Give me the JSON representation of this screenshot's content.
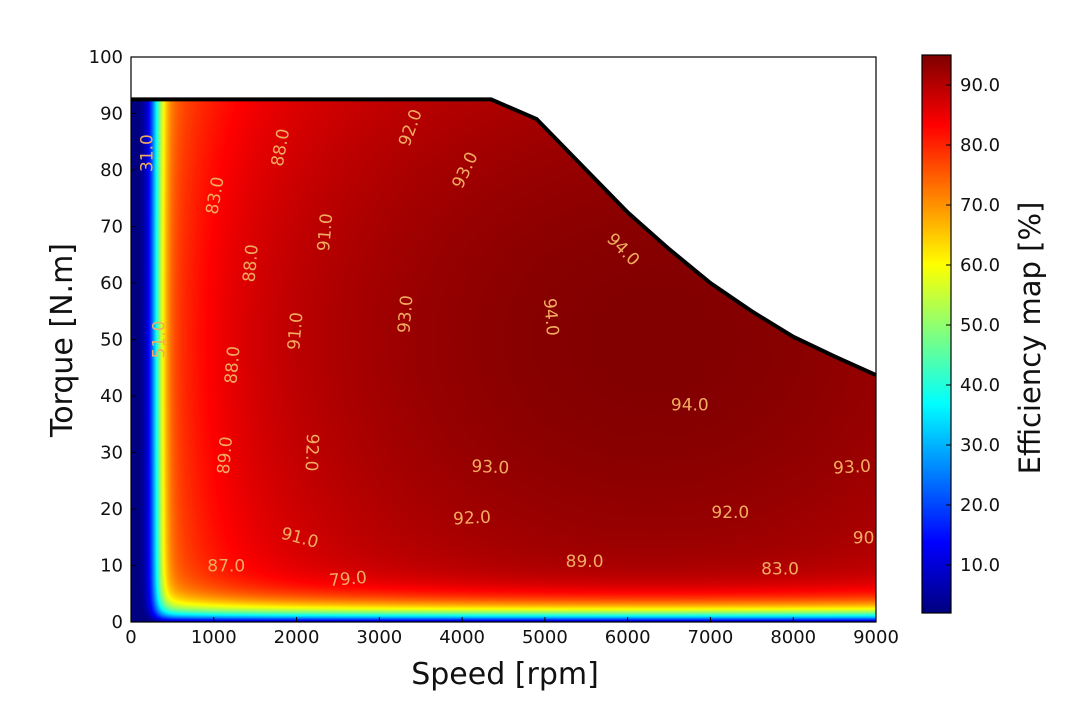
{
  "chart_data": {
    "type": "heatmap",
    "subtype": "filled-contour",
    "title": "",
    "xlabel": "Speed [rpm]",
    "ylabel": "Torque [N.m]",
    "xlim": [
      0,
      9000
    ],
    "ylim": [
      0,
      100
    ],
    "xticks": [
      0,
      1000,
      2000,
      3000,
      4000,
      5000,
      6000,
      7000,
      8000,
      9000
    ],
    "yticks": [
      0,
      10,
      20,
      30,
      40,
      50,
      60,
      70,
      80,
      90,
      100
    ],
    "colorbar": {
      "label": "Efficiency map [%]",
      "range": [
        2,
        95
      ],
      "colormap": "jet",
      "ticks": [
        "10.0",
        "20.0",
        "30.0",
        "40.0",
        "50.0",
        "60.0",
        "70.0",
        "80.0",
        "90.0"
      ]
    },
    "torque_speed_envelope": [
      [
        0,
        92.5
      ],
      [
        4350,
        92.5
      ],
      [
        4900,
        89
      ],
      [
        5500,
        80
      ],
      [
        6000,
        72.5
      ],
      [
        6500,
        66
      ],
      [
        7000,
        60
      ],
      [
        7500,
        55
      ],
      [
        8000,
        50.5
      ],
      [
        8500,
        47
      ],
      [
        9000,
        43.7
      ]
    ],
    "contour_labels": [
      {
        "text": "31.0",
        "speed": 190,
        "torque": 83,
        "angle": -90
      },
      {
        "text": "51.0",
        "speed": 330,
        "torque": 50,
        "angle": -90
      },
      {
        "text": "83.0",
        "speed": 1010,
        "torque": 75.5,
        "angle": -80
      },
      {
        "text": "88.0",
        "speed": 1800,
        "torque": 84,
        "angle": -80
      },
      {
        "text": "92.0",
        "speed": 3370,
        "torque": 87.5,
        "angle": -70
      },
      {
        "text": "93.0",
        "speed": 4030,
        "torque": 80,
        "angle": -65
      },
      {
        "text": "91.0",
        "speed": 2340,
        "torque": 69,
        "angle": -85
      },
      {
        "text": "88.0",
        "speed": 1440,
        "torque": 63.5,
        "angle": -85
      },
      {
        "text": "94.0",
        "speed": 5950,
        "torque": 66,
        "angle": 45
      },
      {
        "text": "94.0",
        "speed": 5080,
        "torque": 54,
        "angle": 85
      },
      {
        "text": "93.0",
        "speed": 3310,
        "torque": 54.5,
        "angle": -85
      },
      {
        "text": "91.0",
        "speed": 1980,
        "torque": 51.5,
        "angle": -85
      },
      {
        "text": "88.0",
        "speed": 1220,
        "torque": 45.5,
        "angle": -85
      },
      {
        "text": "94.0",
        "speed": 6750,
        "torque": 38.5,
        "angle": 0
      },
      {
        "text": "89.0",
        "speed": 1130,
        "torque": 29.5,
        "angle": -85
      },
      {
        "text": "92.0",
        "speed": 2190,
        "torque": 30,
        "angle": 92
      },
      {
        "text": "93.0",
        "speed": 4340,
        "torque": 27.5,
        "angle": 3
      },
      {
        "text": "93.0",
        "speed": 8710,
        "torque": 27.5,
        "angle": -3
      },
      {
        "text": "92.0",
        "speed": 4120,
        "torque": 18.5,
        "angle": -3
      },
      {
        "text": "92.0",
        "speed": 7240,
        "torque": 19.5,
        "angle": 0
      },
      {
        "text": "91.0",
        "speed": 2040,
        "torque": 15,
        "angle": 15
      },
      {
        "text": "90",
        "speed": 8850,
        "torque": 15,
        "angle": 0
      },
      {
        "text": "87.0",
        "speed": 1150,
        "torque": 10,
        "angle": 0
      },
      {
        "text": "79.0",
        "speed": 2620,
        "torque": 7.7,
        "angle": -5
      },
      {
        "text": "89.0",
        "speed": 5480,
        "torque": 10.8,
        "angle": 0
      },
      {
        "text": "83.0",
        "speed": 7840,
        "torque": 9.5,
        "angle": 0
      }
    ]
  },
  "colors": {
    "label": "#f2ac62",
    "envelope": "#000000"
  }
}
